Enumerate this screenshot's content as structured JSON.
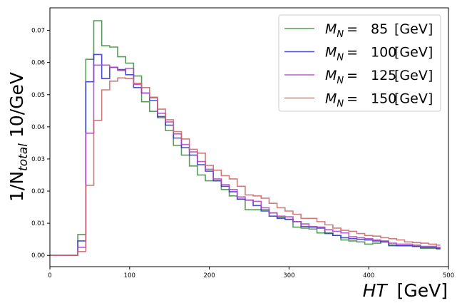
{
  "chart_data": {
    "type": "line",
    "step": true,
    "xlabel": {
      "main": "HT",
      "unit": "[GeV]"
    },
    "ylabel": {
      "prefix": "1/N",
      "sub": "total",
      "suffix": "10/GeV"
    },
    "xlim": [
      0,
      500
    ],
    "ylim": [
      -0.0035,
      0.077
    ],
    "xticks": [
      0,
      100,
      200,
      300,
      400,
      500
    ],
    "yticks": [
      0.0,
      0.01,
      0.02,
      0.03,
      0.04,
      0.05,
      0.06,
      0.07
    ],
    "xtick_labels": [
      "0",
      "100",
      "200",
      "300",
      "400",
      "500"
    ],
    "ytick_labels": [
      "0.00",
      "0.01",
      "0.02",
      "0.03",
      "0.04",
      "0.05",
      "0.06",
      "0.07"
    ],
    "grid": false,
    "legend_position": "top-right",
    "bin_edges": [
      0,
      35,
      45,
      55,
      65,
      75,
      85,
      95,
      105,
      115,
      125,
      135,
      145,
      155,
      165,
      175,
      185,
      195,
      205,
      215,
      225,
      235,
      245,
      255,
      265,
      275,
      285,
      295,
      305,
      315,
      325,
      335,
      345,
      355,
      365,
      375,
      385,
      395,
      405,
      415,
      425,
      435,
      445,
      455,
      465,
      475,
      485,
      490
    ],
    "series": [
      {
        "name": "85",
        "color": "#3c8a3c",
        "values": [
          0.0,
          0.0065,
          0.061,
          0.073,
          0.0652,
          0.0648,
          0.0618,
          0.0598,
          0.0558,
          0.0478,
          0.0448,
          0.0428,
          0.0388,
          0.0342,
          0.0312,
          0.0278,
          0.025,
          0.0232,
          0.0232,
          0.0205,
          0.0185,
          0.0175,
          0.0142,
          0.0142,
          0.0142,
          0.0132,
          0.0118,
          0.0112,
          0.0088,
          0.0085,
          0.0082,
          0.007,
          0.007,
          0.0062,
          0.0048,
          0.0045,
          0.0042,
          0.0035,
          0.0038,
          0.0042,
          0.003,
          0.003,
          0.003,
          0.0028,
          0.0022,
          0.0022,
          0.002
        ]
      },
      {
        "name": "100",
        "color": "#3030c8",
        "values": [
          0.0,
          0.0045,
          0.054,
          0.0625,
          0.055,
          0.0585,
          0.0578,
          0.0562,
          0.0522,
          0.0505,
          0.0482,
          0.0432,
          0.0405,
          0.0365,
          0.0335,
          0.0312,
          0.0282,
          0.0262,
          0.0232,
          0.0215,
          0.0198,
          0.0175,
          0.0172,
          0.0155,
          0.0138,
          0.0122,
          0.0115,
          0.0112,
          0.0105,
          0.009,
          0.0088,
          0.0085,
          0.0068,
          0.0062,
          0.0055,
          0.0052,
          0.005,
          0.0048,
          0.0045,
          0.0042,
          0.0032,
          0.003,
          0.003,
          0.0028,
          0.0025,
          0.0025,
          0.0022
        ]
      },
      {
        "name": "125",
        "color": "#b040c0",
        "values": [
          0.0,
          0.0025,
          0.038,
          0.0592,
          0.0592,
          0.0585,
          0.0575,
          0.0582,
          0.0532,
          0.0505,
          0.049,
          0.0442,
          0.0415,
          0.0378,
          0.0345,
          0.0322,
          0.0292,
          0.0268,
          0.0238,
          0.022,
          0.0205,
          0.0182,
          0.0172,
          0.0168,
          0.0148,
          0.0132,
          0.0122,
          0.012,
          0.0105,
          0.0098,
          0.009,
          0.0088,
          0.008,
          0.0075,
          0.007,
          0.0058,
          0.0055,
          0.0052,
          0.0048,
          0.0045,
          0.0038,
          0.0035,
          0.0035,
          0.0032,
          0.0028,
          0.0028,
          0.0025
        ]
      },
      {
        "name": "150",
        "color": "#c86464",
        "values": [
          0.0,
          0.0012,
          0.0218,
          0.042,
          0.0515,
          0.0542,
          0.0552,
          0.055,
          0.0535,
          0.0522,
          0.0492,
          0.0455,
          0.0422,
          0.0385,
          0.0362,
          0.033,
          0.0318,
          0.028,
          0.0265,
          0.0248,
          0.0238,
          0.0215,
          0.0188,
          0.0185,
          0.0178,
          0.0162,
          0.0148,
          0.0138,
          0.0128,
          0.0115,
          0.0115,
          0.0105,
          0.0095,
          0.0085,
          0.0078,
          0.0075,
          0.0068,
          0.0062,
          0.006,
          0.0055,
          0.0052,
          0.0048,
          0.0042,
          0.004,
          0.0038,
          0.0035,
          0.0032
        ]
      }
    ],
    "legend": {
      "prefix": "M",
      "sub": "N",
      "eq": "=",
      "unit": "[GeV]",
      "entries": [
        "85",
        "100",
        "125",
        "150"
      ]
    }
  }
}
